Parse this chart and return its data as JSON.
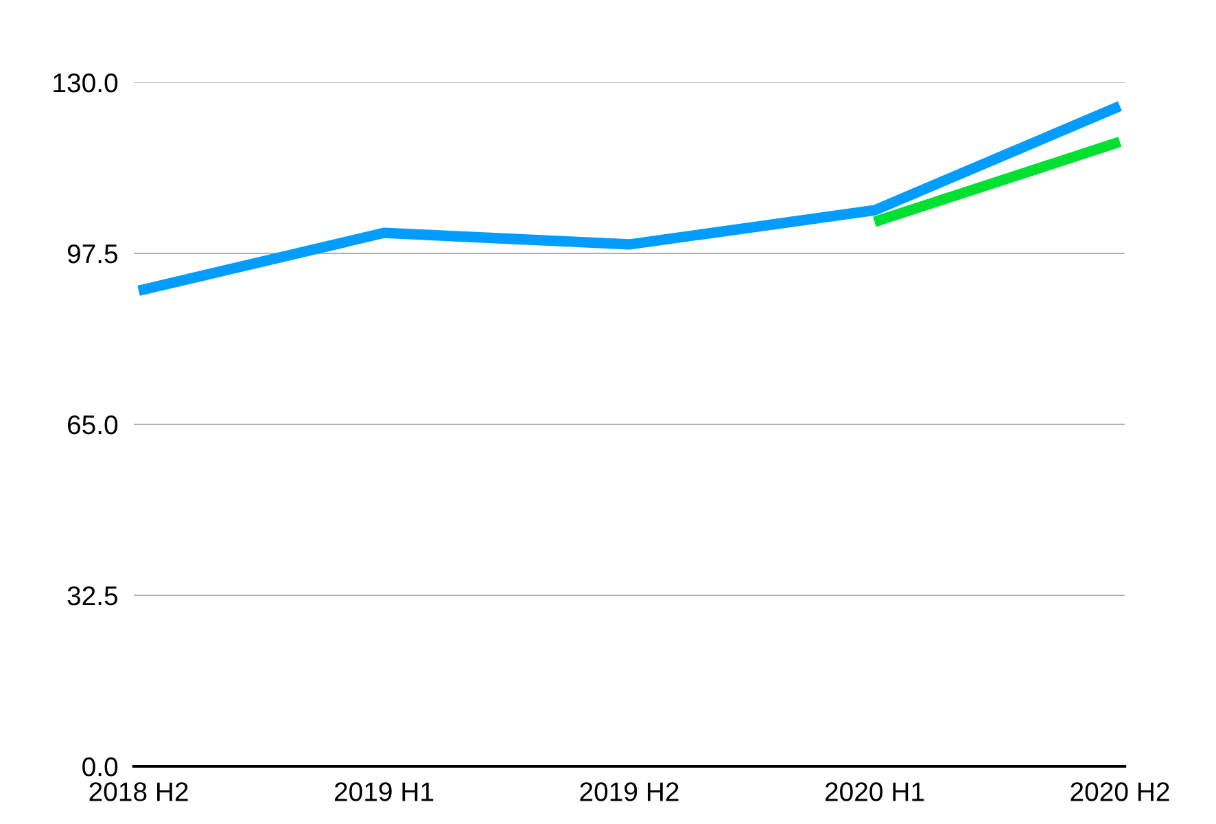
{
  "chart_data": {
    "type": "line",
    "categories": [
      "2018 H2",
      "2019 H1",
      "2019 H2",
      "2020 H1",
      "2020 H2"
    ],
    "series": [
      {
        "color": "#009dff",
        "values": [
          90.4,
          101.4,
          99.2,
          105.7,
          125.5
        ]
      },
      {
        "color": "#00e031",
        "values": [
          null,
          null,
          null,
          103.5,
          118.7
        ]
      }
    ],
    "ylim": [
      0,
      130
    ],
    "yticks": [
      {
        "value": 0,
        "label": "0.0"
      },
      {
        "value": 32.5,
        "label": "32.5"
      },
      {
        "value": 65,
        "label": "65.0"
      },
      {
        "value": 97.5,
        "label": "97.5"
      },
      {
        "value": 130,
        "label": "130.0"
      }
    ],
    "grid": "y",
    "marker": "none",
    "line_style": "solid"
  }
}
